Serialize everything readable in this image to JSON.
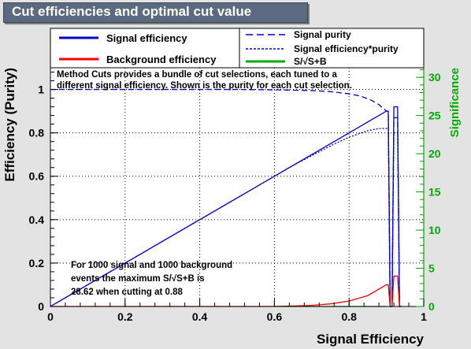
{
  "title": "Cut efficiencies and optimal cut value",
  "legend": {
    "entries": [
      {
        "label": "Signal efficiency",
        "color": "#0000d0",
        "style": "solid"
      },
      {
        "label": "Background efficiency",
        "color": "#ff0000",
        "style": "solid"
      },
      {
        "label": "Signal purity",
        "color": "#0000d0",
        "style": "longdash"
      },
      {
        "label": "Signal efficiency*purity",
        "color": "#0000d0",
        "style": "dotted"
      },
      {
        "label": "S/√S+B",
        "color": "#00aa00",
        "style": "solid"
      }
    ]
  },
  "annotation_top": [
    "Method Cuts provides a bundle of cut selections, each tuned to a",
    "different signal efficiency. Shown is the purity for each cut selection."
  ],
  "annotation_bottom": [
    "For 1000 signal and 1000 background",
    "events the maximum S/√S+B is",
    "28.62 when cutting at  0.88"
  ],
  "colors": {
    "signal": "#0000d0",
    "background": "#ff0000",
    "significance": "#00aa00",
    "title_bg": "#5b6a7f",
    "frame_bg": "#e3e3e3"
  },
  "chart_data": {
    "type": "line",
    "xlabel": "Signal Efficiency",
    "ylabel": "Efficiency (Purity)",
    "y2label": "Significance",
    "xlim": [
      0,
      1
    ],
    "ylim": [
      0,
      1.1
    ],
    "y2lim": [
      0,
      31.25
    ],
    "xticks": [
      "0",
      "0.2",
      "0.4",
      "0.6",
      "0.8",
      "1"
    ],
    "yticks": [
      "0",
      "0.2",
      "0.4",
      "0.6",
      "0.8",
      "1"
    ],
    "y2ticks": [
      "0",
      "5",
      "10",
      "15",
      "20",
      "25",
      "30"
    ],
    "grid": true,
    "series": [
      {
        "name": "Signal efficiency",
        "x": [
          0,
          0.02,
          0.05,
          0.1,
          0.15,
          0.2,
          0.25,
          0.3,
          0.35,
          0.4,
          0.45,
          0.5,
          0.55,
          0.6,
          0.65,
          0.7,
          0.75,
          0.8,
          0.85,
          0.88,
          0.9,
          0.905,
          0.91,
          0.915,
          0.92,
          0.93,
          0.935,
          0.94
        ],
        "y": [
          0.0,
          0.02,
          0.05,
          0.1,
          0.15,
          0.2,
          0.25,
          0.3,
          0.35,
          0.4,
          0.45,
          0.5,
          0.55,
          0.6,
          0.65,
          0.7,
          0.75,
          0.8,
          0.85,
          0.88,
          0.9,
          0.9,
          0.0,
          0.0,
          0.92,
          0.92,
          0.0,
          0.0
        ]
      },
      {
        "name": "Background efficiency",
        "x": [
          0,
          0.1,
          0.2,
          0.3,
          0.4,
          0.5,
          0.6,
          0.65,
          0.7,
          0.75,
          0.8,
          0.85,
          0.88,
          0.9,
          0.905,
          0.91,
          0.915,
          0.92,
          0.93,
          0.935,
          0.94
        ],
        "y": [
          0,
          0,
          0,
          0,
          0,
          0,
          0.0,
          0.002,
          0.005,
          0.012,
          0.025,
          0.05,
          0.08,
          0.1,
          0.1,
          0.0,
          0.0,
          0.14,
          0.14,
          0.0,
          0.0
        ]
      },
      {
        "name": "Signal purity",
        "x": [
          0.0,
          0.05,
          0.1,
          0.2,
          0.3,
          0.4,
          0.5,
          0.6,
          0.7,
          0.75,
          0.8,
          0.83,
          0.86,
          0.88,
          0.9,
          0.905,
          0.91,
          0.915,
          0.92,
          0.93,
          0.935,
          0.94
        ],
        "y": [
          1.0,
          1.0,
          1.0,
          1.0,
          1.0,
          1.0,
          1.0,
          0.998,
          0.995,
          0.99,
          0.98,
          0.97,
          0.95,
          0.93,
          0.9,
          0.9,
          0.0,
          0.0,
          0.87,
          0.87,
          0.0,
          0.0
        ]
      },
      {
        "name": "Signal efficiency*purity",
        "x": [
          0,
          0.1,
          0.2,
          0.3,
          0.4,
          0.5,
          0.6,
          0.65,
          0.7,
          0.75,
          0.8,
          0.85,
          0.88,
          0.9,
          0.905,
          0.91,
          0.915,
          0.92,
          0.93,
          0.935,
          0.94
        ],
        "y": [
          0,
          0.1,
          0.2,
          0.3,
          0.4,
          0.5,
          0.6,
          0.65,
          0.695,
          0.74,
          0.78,
          0.81,
          0.82,
          0.82,
          0.82,
          0.0,
          0.0,
          0.8,
          0.8,
          0.0,
          0.0
        ]
      },
      {
        "name": "S/√S+B",
        "axis": "y2",
        "x": [
          0.6,
          0.9
        ],
        "y": [
          0,
          0
        ]
      }
    ]
  }
}
